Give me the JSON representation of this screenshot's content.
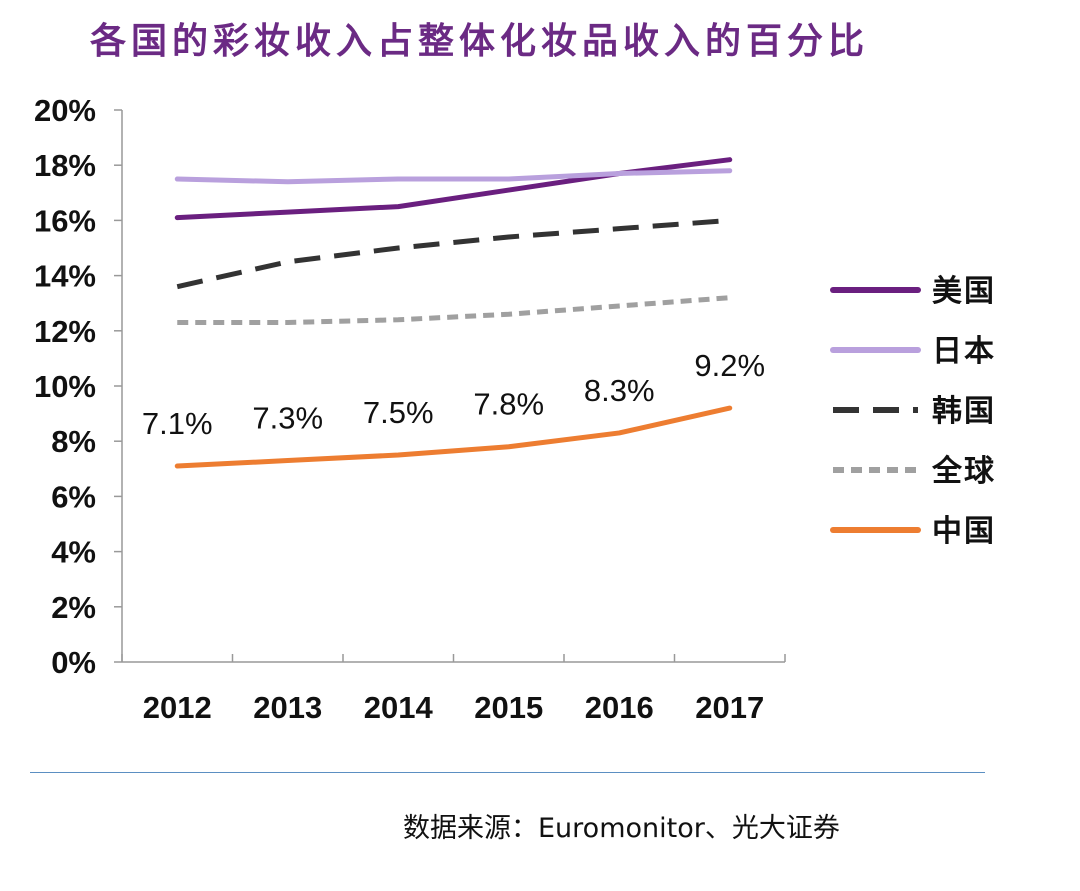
{
  "chart_data": {
    "type": "line",
    "title": "各国的彩妆收入占整体化妆品收入的百分比",
    "categories": [
      "2012",
      "2013",
      "2014",
      "2015",
      "2016",
      "2017"
    ],
    "y_ticks": [
      "0%",
      "2%",
      "4%",
      "6%",
      "8%",
      "10%",
      "12%",
      "14%",
      "16%",
      "18%",
      "20%"
    ],
    "ylim": [
      0,
      20
    ],
    "y_unit": "%",
    "grid": false,
    "legend_position": "right",
    "series": [
      {
        "name": "美国",
        "values": [
          16.1,
          16.3,
          16.5,
          17.1,
          17.7,
          18.2
        ],
        "color": "#6a1f7f",
        "dash": "solid"
      },
      {
        "name": "日本",
        "values": [
          17.5,
          17.4,
          17.5,
          17.5,
          17.7,
          17.8
        ],
        "color": "#b9a0dd",
        "dash": "solid"
      },
      {
        "name": "韩国",
        "values": [
          13.6,
          14.5,
          15.0,
          15.4,
          15.7,
          16.0
        ],
        "color": "#333333",
        "dash": "long"
      },
      {
        "name": "全球",
        "values": [
          12.3,
          12.3,
          12.4,
          12.6,
          12.9,
          13.2
        ],
        "color": "#a0a0a0",
        "dash": "short"
      },
      {
        "name": "中国",
        "values": [
          7.1,
          7.3,
          7.5,
          7.8,
          8.3,
          9.2
        ],
        "color": "#ed7d31",
        "dash": "solid",
        "labels": [
          "7.1%",
          "7.3%",
          "7.5%",
          "7.8%",
          "8.3%",
          "9.2%"
        ]
      }
    ]
  },
  "source": "数据来源：Euromonitor、光大证券"
}
